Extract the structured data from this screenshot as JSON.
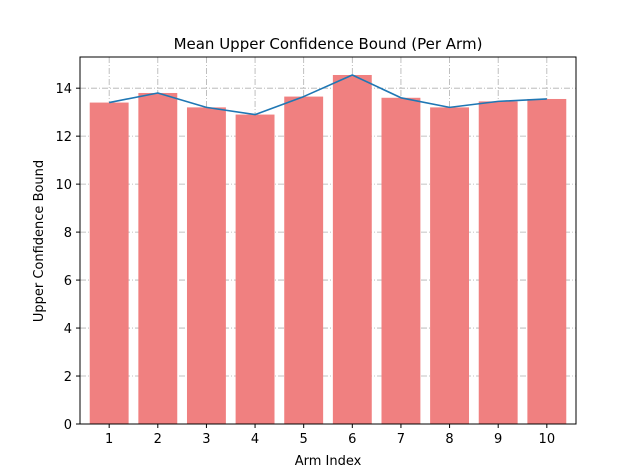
{
  "chart_data": {
    "type": "bar",
    "title": "Mean Upper Confidence Bound (Per Arm)",
    "xlabel": "Arm Index",
    "ylabel": "Upper Confidence Bound",
    "categories": [
      "1",
      "2",
      "3",
      "4",
      "5",
      "6",
      "7",
      "8",
      "9",
      "10"
    ],
    "series": [
      {
        "type": "bar",
        "color": "#f08080",
        "values": [
          13.4,
          13.8,
          13.2,
          12.9,
          13.65,
          14.55,
          13.6,
          13.2,
          13.45,
          13.55
        ]
      },
      {
        "type": "line",
        "color": "#1f77b4",
        "values": [
          13.4,
          13.8,
          13.2,
          12.9,
          13.65,
          14.55,
          13.6,
          13.2,
          13.45,
          13.55
        ]
      }
    ],
    "ylim": [
      0,
      15.3
    ],
    "yticks": [
      0,
      2,
      4,
      6,
      8,
      10,
      12,
      14
    ],
    "grid": true,
    "grid_style": "dashdot",
    "grid_color": "#b0b0b0"
  }
}
